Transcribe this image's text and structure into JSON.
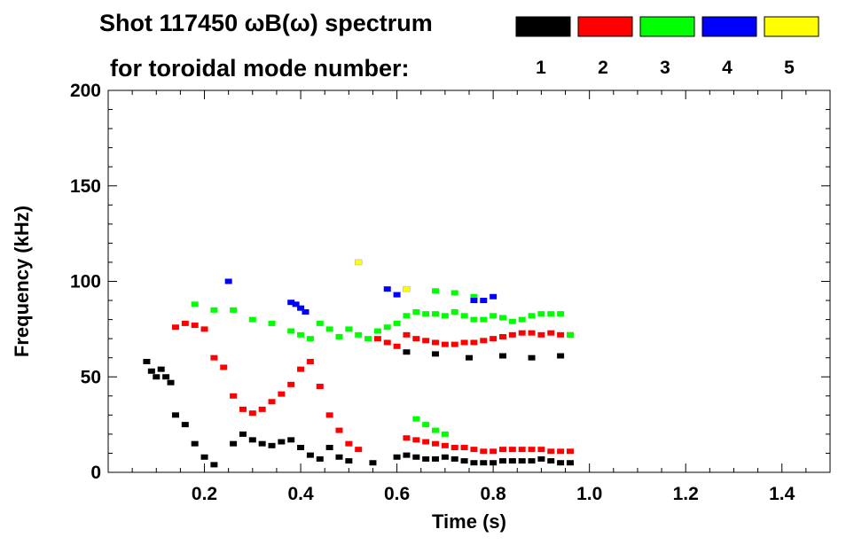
{
  "chart_data": {
    "type": "spectrogram",
    "title": "Shot 117450 ωB(ω) spectrum",
    "legend_title": "for toroidal mode number:",
    "xlabel": "Time (s)",
    "ylabel": "Frequency (kHz)",
    "xlim": [
      0.0,
      1.5
    ],
    "ylim": [
      0,
      200
    ],
    "x_ticks": [
      0.2,
      0.4,
      0.6,
      0.8,
      1.0,
      1.2,
      1.4
    ],
    "x_tick_labels": [
      "0.2",
      "0.4",
      "0.6",
      "0.8",
      "1.0",
      "1.2",
      "1.4"
    ],
    "y_ticks": [
      0,
      50,
      100,
      150,
      200
    ],
    "y_tick_labels": [
      "0",
      "50",
      "100",
      "150",
      "200"
    ],
    "grid": false,
    "legend": [
      {
        "mode": "1",
        "color": "#000000"
      },
      {
        "mode": "2",
        "color": "#ff0000"
      },
      {
        "mode": "3",
        "color": "#00ff00"
      },
      {
        "mode": "4",
        "color": "#0000ff"
      },
      {
        "mode": "5",
        "color": "#ffff00"
      }
    ],
    "series": [
      {
        "mode": "1",
        "color": "#000000",
        "points": [
          [
            0.08,
            58
          ],
          [
            0.09,
            53
          ],
          [
            0.1,
            50
          ],
          [
            0.11,
            54
          ],
          [
            0.12,
            50
          ],
          [
            0.13,
            47
          ],
          [
            0.14,
            30
          ],
          [
            0.16,
            25
          ],
          [
            0.18,
            15
          ],
          [
            0.2,
            8
          ],
          [
            0.22,
            4
          ],
          [
            0.26,
            15
          ],
          [
            0.28,
            20
          ],
          [
            0.3,
            17
          ],
          [
            0.32,
            15
          ],
          [
            0.34,
            14
          ],
          [
            0.36,
            16
          ],
          [
            0.38,
            17
          ],
          [
            0.4,
            13
          ],
          [
            0.42,
            9
          ],
          [
            0.44,
            7
          ],
          [
            0.46,
            13
          ],
          [
            0.48,
            8
          ],
          [
            0.5,
            6
          ],
          [
            0.55,
            5
          ],
          [
            0.6,
            8
          ],
          [
            0.62,
            9
          ],
          [
            0.64,
            8
          ],
          [
            0.66,
            7
          ],
          [
            0.68,
            7
          ],
          [
            0.7,
            8
          ],
          [
            0.72,
            7
          ],
          [
            0.74,
            6
          ],
          [
            0.76,
            5
          ],
          [
            0.78,
            5
          ],
          [
            0.8,
            5
          ],
          [
            0.82,
            6
          ],
          [
            0.84,
            6
          ],
          [
            0.86,
            6
          ],
          [
            0.88,
            6
          ],
          [
            0.9,
            7
          ],
          [
            0.92,
            6
          ],
          [
            0.94,
            5
          ],
          [
            0.96,
            5
          ],
          [
            0.62,
            63
          ],
          [
            0.68,
            62
          ],
          [
            0.75,
            60
          ],
          [
            0.82,
            61
          ],
          [
            0.88,
            60
          ],
          [
            0.94,
            61
          ]
        ]
      },
      {
        "mode": "2",
        "color": "#ff0000",
        "points": [
          [
            0.14,
            76
          ],
          [
            0.16,
            78
          ],
          [
            0.18,
            77
          ],
          [
            0.2,
            75
          ],
          [
            0.22,
            60
          ],
          [
            0.24,
            55
          ],
          [
            0.26,
            40
          ],
          [
            0.28,
            33
          ],
          [
            0.3,
            31
          ],
          [
            0.32,
            33
          ],
          [
            0.34,
            37
          ],
          [
            0.36,
            41
          ],
          [
            0.38,
            46
          ],
          [
            0.4,
            54
          ],
          [
            0.42,
            58
          ],
          [
            0.44,
            45
          ],
          [
            0.46,
            30
          ],
          [
            0.48,
            22
          ],
          [
            0.5,
            15
          ],
          [
            0.52,
            12
          ],
          [
            0.56,
            70
          ],
          [
            0.58,
            68
          ],
          [
            0.6,
            66
          ],
          [
            0.62,
            72
          ],
          [
            0.64,
            70
          ],
          [
            0.66,
            69
          ],
          [
            0.68,
            68
          ],
          [
            0.7,
            67
          ],
          [
            0.72,
            67
          ],
          [
            0.74,
            68
          ],
          [
            0.76,
            68
          ],
          [
            0.78,
            69
          ],
          [
            0.8,
            70
          ],
          [
            0.82,
            71
          ],
          [
            0.84,
            72
          ],
          [
            0.86,
            73
          ],
          [
            0.88,
            73
          ],
          [
            0.9,
            72
          ],
          [
            0.92,
            73
          ],
          [
            0.94,
            72
          ],
          [
            0.96,
            72
          ],
          [
            0.62,
            18
          ],
          [
            0.64,
            17
          ],
          [
            0.66,
            16
          ],
          [
            0.68,
            15
          ],
          [
            0.7,
            14
          ],
          [
            0.72,
            13
          ],
          [
            0.74,
            13
          ],
          [
            0.76,
            12
          ],
          [
            0.78,
            11
          ],
          [
            0.8,
            11
          ],
          [
            0.82,
            12
          ],
          [
            0.84,
            12
          ],
          [
            0.86,
            12
          ],
          [
            0.88,
            12
          ],
          [
            0.9,
            12
          ],
          [
            0.92,
            11
          ],
          [
            0.94,
            11
          ],
          [
            0.96,
            11
          ]
        ]
      },
      {
        "mode": "3",
        "color": "#00ff00",
        "points": [
          [
            0.18,
            88
          ],
          [
            0.22,
            85
          ],
          [
            0.26,
            85
          ],
          [
            0.3,
            80
          ],
          [
            0.34,
            78
          ],
          [
            0.38,
            74
          ],
          [
            0.4,
            72
          ],
          [
            0.42,
            70
          ],
          [
            0.44,
            78
          ],
          [
            0.46,
            75
          ],
          [
            0.48,
            71
          ],
          [
            0.5,
            75
          ],
          [
            0.52,
            72
          ],
          [
            0.54,
            70
          ],
          [
            0.56,
            74
          ],
          [
            0.58,
            76
          ],
          [
            0.6,
            78
          ],
          [
            0.62,
            82
          ],
          [
            0.64,
            84
          ],
          [
            0.66,
            83
          ],
          [
            0.68,
            83
          ],
          [
            0.7,
            82
          ],
          [
            0.72,
            84
          ],
          [
            0.74,
            82
          ],
          [
            0.76,
            80
          ],
          [
            0.78,
            80
          ],
          [
            0.8,
            82
          ],
          [
            0.82,
            81
          ],
          [
            0.84,
            79
          ],
          [
            0.86,
            80
          ],
          [
            0.88,
            82
          ],
          [
            0.9,
            83
          ],
          [
            0.92,
            83
          ],
          [
            0.94,
            83
          ],
          [
            0.96,
            72
          ],
          [
            0.68,
            95
          ],
          [
            0.72,
            94
          ],
          [
            0.76,
            92
          ],
          [
            0.64,
            28
          ],
          [
            0.66,
            25
          ],
          [
            0.68,
            22
          ],
          [
            0.7,
            20
          ]
        ]
      },
      {
        "mode": "4",
        "color": "#0000ff",
        "points": [
          [
            0.38,
            89
          ],
          [
            0.39,
            88
          ],
          [
            0.4,
            86
          ],
          [
            0.41,
            84
          ],
          [
            0.25,
            100
          ],
          [
            0.58,
            96
          ],
          [
            0.6,
            93
          ],
          [
            0.76,
            90
          ],
          [
            0.78,
            90
          ],
          [
            0.8,
            92
          ]
        ]
      },
      {
        "mode": "5",
        "color": "#ffff00",
        "points": [
          [
            0.52,
            110
          ],
          [
            0.62,
            96
          ]
        ]
      }
    ]
  }
}
